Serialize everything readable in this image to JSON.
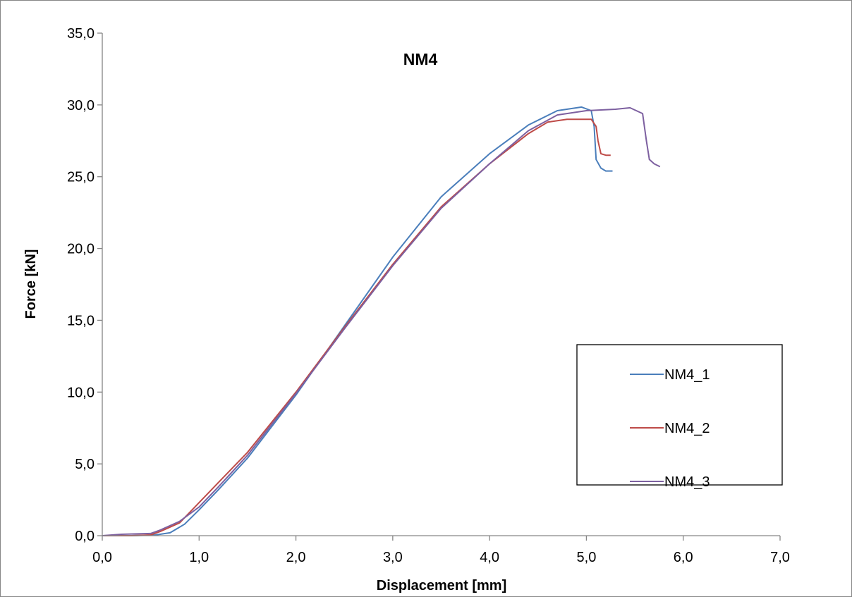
{
  "chart_data": {
    "type": "line",
    "title": "NM4",
    "xlabel": "Displacement [mm]",
    "ylabel": "Force [kN]",
    "xlim": [
      0,
      7
    ],
    "ylim": [
      0,
      35
    ],
    "x_ticks": [
      "0,0",
      "1,0",
      "2,0",
      "3,0",
      "4,0",
      "5,0",
      "6,0",
      "7,0"
    ],
    "y_ticks": [
      "0,0",
      "5,0",
      "10,0",
      "15,0",
      "20,0",
      "25,0",
      "30,0",
      "35,0"
    ],
    "grid": false,
    "legend_position": "right",
    "series": [
      {
        "name": "NM4_1",
        "color": "#4a7ebb",
        "points": [
          [
            0,
            0
          ],
          [
            0.3,
            0
          ],
          [
            0.55,
            0.05
          ],
          [
            0.7,
            0.2
          ],
          [
            0.85,
            0.8
          ],
          [
            1.0,
            1.8
          ],
          [
            1.2,
            3.2
          ],
          [
            1.5,
            5.4
          ],
          [
            2.0,
            9.8
          ],
          [
            2.5,
            14.6
          ],
          [
            3.0,
            19.4
          ],
          [
            3.5,
            23.6
          ],
          [
            4.0,
            26.6
          ],
          [
            4.4,
            28.6
          ],
          [
            4.7,
            29.6
          ],
          [
            4.95,
            29.85
          ],
          [
            5.05,
            29.6
          ],
          [
            5.08,
            28.5
          ],
          [
            5.1,
            26.2
          ],
          [
            5.15,
            25.6
          ],
          [
            5.2,
            25.4
          ],
          [
            5.27,
            25.4
          ]
        ]
      },
      {
        "name": "NM4_2",
        "color": "#be4b48",
        "points": [
          [
            0,
            0
          ],
          [
            0.3,
            0
          ],
          [
            0.5,
            0.05
          ],
          [
            0.6,
            0.3
          ],
          [
            0.8,
            0.9
          ],
          [
            1.0,
            2.3
          ],
          [
            1.2,
            3.7
          ],
          [
            1.5,
            5.8
          ],
          [
            2.0,
            10.0
          ],
          [
            2.5,
            14.5
          ],
          [
            3.0,
            18.9
          ],
          [
            3.5,
            22.9
          ],
          [
            4.0,
            25.9
          ],
          [
            4.4,
            28.0
          ],
          [
            4.6,
            28.8
          ],
          [
            4.8,
            29.0
          ],
          [
            5.05,
            29.0
          ],
          [
            5.1,
            28.5
          ],
          [
            5.12,
            27.5
          ],
          [
            5.15,
            26.6
          ],
          [
            5.2,
            26.5
          ],
          [
            5.25,
            26.5
          ]
        ]
      },
      {
        "name": "NM4_3",
        "color": "#7d60a0",
        "points": [
          [
            0,
            0
          ],
          [
            0.2,
            0.1
          ],
          [
            0.5,
            0.15
          ],
          [
            0.6,
            0.4
          ],
          [
            0.8,
            1.0
          ],
          [
            1.0,
            2.0
          ],
          [
            1.2,
            3.4
          ],
          [
            1.5,
            5.6
          ],
          [
            2.0,
            9.9
          ],
          [
            2.5,
            14.4
          ],
          [
            3.0,
            18.8
          ],
          [
            3.5,
            22.8
          ],
          [
            4.0,
            25.9
          ],
          [
            4.4,
            28.2
          ],
          [
            4.7,
            29.3
          ],
          [
            5.0,
            29.6
          ],
          [
            5.3,
            29.7
          ],
          [
            5.45,
            29.8
          ],
          [
            5.58,
            29.4
          ],
          [
            5.62,
            27.5
          ],
          [
            5.65,
            26.2
          ],
          [
            5.7,
            25.9
          ],
          [
            5.76,
            25.7
          ]
        ]
      }
    ]
  }
}
